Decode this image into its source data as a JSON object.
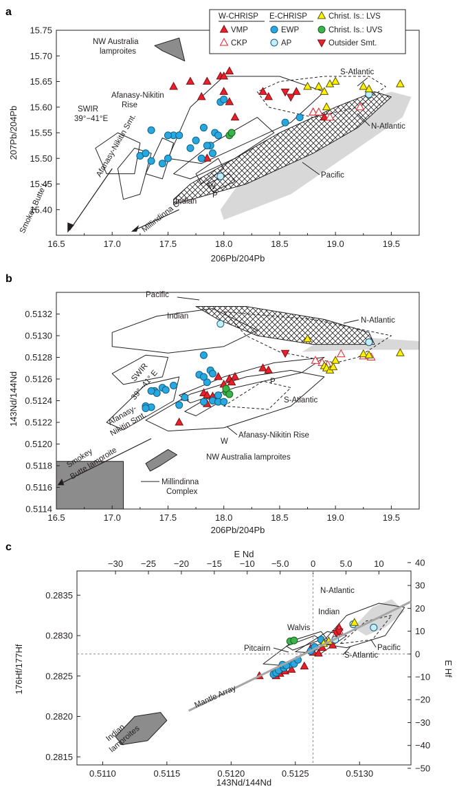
{
  "colors": {
    "red": "#e8202a",
    "blue": "#29a8e0",
    "cyan": "#c6ecf8",
    "yellow": "#fff200",
    "green": "#39b54a",
    "grey": "#8c8c8c",
    "lightgrey": "#d8d8d8"
  },
  "legend": {
    "groups": [
      "W-CHRISP",
      "E-CHRISP"
    ],
    "items": [
      {
        "label": "VMP",
        "marker": "triangle-up-filled-red"
      },
      {
        "label": "CKP",
        "marker": "triangle-up-open-red"
      },
      {
        "label": "EWP",
        "marker": "circle-filled-blue"
      },
      {
        "label": "AP",
        "marker": "circle-open-cyan"
      },
      {
        "label": "Christ. Is.: LVS",
        "marker": "triangle-up-yellow"
      },
      {
        "label": "Christ. Is.: UVS",
        "marker": "circle-green"
      },
      {
        "label": "Outsider Smt.",
        "marker": "triangle-down-red"
      }
    ]
  },
  "chart_data": [
    {
      "panel": "a",
      "type": "scatter",
      "xlabel": "206Pb/204Pb",
      "ylabel": "207Pb/204Pb",
      "xlim": [
        16.5,
        19.75
      ],
      "ylim": [
        15.35,
        15.75
      ],
      "xticks": [
        "16.5",
        "17.0",
        "17.5",
        "18.0",
        "18.5",
        "19.0",
        "19.5"
      ],
      "yticks": [
        "15.40",
        "15.45",
        "15.50",
        "15.55",
        "15.60",
        "15.65",
        "15.70",
        "15.75"
      ],
      "annotations": [
        "NW Australia lamproites",
        "Afanasy-Nikitin Rise",
        "SWIR 39°−41°E",
        "Afanasy-Nikitin Smt.",
        "Indian",
        "W",
        "P",
        "Pacific",
        "S-Atlantic",
        "N-Atlantic",
        "Smokey Butte L.",
        "Millindinna C."
      ],
      "series": [
        {
          "name": "VMP",
          "x": [
            17.55,
            17.7,
            17.8,
            17.85,
            17.97,
            18.0,
            18.0,
            18.05,
            18.05,
            18.1,
            17.85,
            18.35,
            18.4,
            18.65,
            18.8,
            18.9
          ],
          "y": [
            15.64,
            15.65,
            15.62,
            15.65,
            15.66,
            15.66,
            15.63,
            15.61,
            15.67,
            15.58,
            15.5,
            15.63,
            15.62,
            15.63,
            15.59,
            15.58
          ]
        },
        {
          "name": "CKP",
          "x": [
            18.8,
            18.85,
            18.95,
            19.22
          ],
          "y": [
            15.59,
            15.59,
            15.58,
            15.6
          ]
        },
        {
          "name": "EWP",
          "x": [
            17.25,
            17.35,
            17.45,
            17.5,
            17.55,
            17.6,
            17.3,
            17.35,
            17.5,
            17.7,
            17.75,
            17.8,
            17.82,
            17.88,
            17.9,
            17.92,
            17.95,
            17.97,
            17.85,
            18.0,
            18.55,
            18.68
          ],
          "y": [
            15.505,
            15.495,
            15.49,
            15.5,
            15.545,
            15.545,
            15.51,
            15.555,
            15.545,
            15.52,
            15.535,
            15.5,
            15.56,
            15.525,
            15.51,
            15.55,
            15.545,
            15.61,
            15.525,
            15.615,
            15.57,
            15.58
          ]
        },
        {
          "name": "AP",
          "x": [
            17.97,
            19.3
          ],
          "y": [
            15.465,
            15.625
          ]
        },
        {
          "name": "Christ. Is.: LVS",
          "x": [
            18.75,
            18.85,
            18.9,
            18.95,
            18.92,
            19.0,
            19.25,
            19.3,
            19.58
          ],
          "y": [
            15.64,
            15.64,
            15.63,
            15.645,
            15.6,
            15.65,
            15.64,
            15.635,
            15.645
          ]
        },
        {
          "name": "Christ. Is.: UVS",
          "x": [
            18.05,
            18.07
          ],
          "y": [
            15.545,
            15.55
          ]
        },
        {
          "name": "Outsider Smt.",
          "x": [
            18.55,
            18.6
          ],
          "y": [
            15.63,
            15.62
          ]
        }
      ]
    },
    {
      "panel": "b",
      "type": "scatter",
      "xlabel": "206Pb/204Pb",
      "ylabel": "143Nd/144Nd",
      "xlim": [
        16.5,
        19.75
      ],
      "ylim": [
        0.5114,
        0.5134
      ],
      "xticks": [
        "16.5",
        "17.0",
        "17.5",
        "18.0",
        "18.5",
        "19.0",
        "19.5"
      ],
      "yticks": [
        "0.5114",
        "0.5116",
        "0.5118",
        "0.5120",
        "0.5122",
        "0.5124",
        "0.5126",
        "0.5128",
        "0.5130",
        "0.5132"
      ],
      "annotations": [
        "Pacific",
        "Indian",
        "N-Atlantic",
        "SWIR 39°−41° E",
        "P",
        "S-Atlantic",
        "W",
        "Afanasy-Nikitin Smt.",
        "Afanasy-Nikitin Rise",
        "Smokey Butte lamproite",
        "NW Australia lamproites",
        "Millindinna Complex"
      ],
      "series": [
        {
          "name": "VMP",
          "x": [
            17.65,
            17.82,
            17.85,
            17.9,
            18.0,
            18.05,
            18.07,
            18.1,
            17.95,
            17.85,
            18.35,
            18.4,
            17.95,
            17.6
          ],
          "y": [
            0.51243,
            0.51247,
            0.51245,
            0.51244,
            0.51255,
            0.5126,
            0.51257,
            0.51262,
            0.51262,
            0.51237,
            0.5127,
            0.51268,
            0.51241,
            0.5122
          ]
        },
        {
          "name": "CKP",
          "x": [
            18.82,
            18.88,
            18.93,
            19.05,
            19.25,
            19.32
          ],
          "y": [
            0.51277,
            0.51275,
            0.51273,
            0.51283,
            0.51281,
            0.5128
          ]
        },
        {
          "name": "EWP",
          "x": [
            17.3,
            17.35,
            17.38,
            17.4,
            17.45,
            17.48,
            17.3,
            17.35,
            17.6,
            17.65,
            17.82,
            17.85,
            17.78,
            17.82,
            17.82,
            17.88,
            17.9,
            17.95,
            17.95,
            18.0,
            17.55,
            17.9
          ],
          "y": [
            0.51235,
            0.51234,
            0.51249,
            0.51247,
            0.51252,
            0.5125,
            0.51233,
            0.51249,
            0.51236,
            0.51243,
            0.51282,
            0.51257,
            0.51264,
            0.51262,
            0.51239,
            0.51268,
            0.5124,
            0.51239,
            0.51245,
            0.51239,
            0.51254,
            0.51265
          ]
        },
        {
          "name": "AP",
          "x": [
            17.97,
            19.3
          ],
          "y": [
            0.51311,
            0.51294
          ]
        },
        {
          "name": "Christ. Is.: LVS",
          "x": [
            18.75,
            18.9,
            18.92,
            18.95,
            18.98,
            19.0,
            19.25,
            19.3,
            19.58
          ],
          "y": [
            0.51297,
            0.51272,
            0.5127,
            0.51268,
            0.51271,
            0.51277,
            0.51283,
            0.51282,
            0.51284
          ]
        },
        {
          "name": "Christ. Is.: UVS",
          "x": [
            18.02,
            18.02,
            18.05
          ],
          "y": [
            0.51248,
            0.51251,
            0.51246
          ]
        },
        {
          "name": "Outsider Smt.",
          "x": [
            18.55
          ],
          "y": [
            0.51284
          ]
        }
      ]
    },
    {
      "panel": "c",
      "type": "scatter",
      "xlabel": "143Nd/144Nd",
      "ylabel": "176Hf/177Hf",
      "top_axis_label": "E Nd",
      "right_axis_label": "E Hf",
      "xlim": [
        0.5108,
        0.5134
      ],
      "ylim": [
        0.2814,
        0.2838
      ],
      "xticks": [
        "0.5110",
        "0.5115",
        "0.5120",
        "0.5125",
        "0.5130"
      ],
      "yticks": [
        "0.2815",
        "0.2820",
        "0.2825",
        "0.2830",
        "0.2835"
      ],
      "top_ticks": [
        "−30",
        "−25",
        "−20",
        "−15",
        "−10",
        "−5.0",
        "0",
        "5.0",
        "10"
      ],
      "right_ticks": [
        "40",
        "30",
        "20",
        "10",
        "0",
        "−10",
        "−20",
        "−30",
        "−40",
        "−50"
      ],
      "annotations": [
        "N-Atlantic",
        "Indian",
        "Walvis",
        "Pitcairn",
        "Pacific",
        "S-Atlantic",
        "Mantle Array",
        "Indian lamproites"
      ],
      "series": [
        {
          "name": "VMP",
          "x": [
            0.51222,
            0.51235,
            0.51238,
            0.51242,
            0.51247,
            0.51257,
            0.51262,
            0.51264,
            0.51268,
            0.51271,
            0.51279,
            0.51284
          ],
          "y": [
            0.2825,
            0.2825,
            0.28253,
            0.28256,
            0.28258,
            0.28262,
            0.28284,
            0.28279,
            0.28278,
            0.28285,
            0.28288,
            0.2831
          ]
        },
        {
          "name": "CKP",
          "x": [
            0.51276,
            0.5128,
            0.51282,
            0.51284
          ],
          "y": [
            0.28293,
            0.28295,
            0.28302,
            0.28306
          ]
        },
        {
          "name": "EWP",
          "x": [
            0.51233,
            0.51235,
            0.51237,
            0.51241,
            0.51245,
            0.51249,
            0.51252,
            0.51262,
            0.51265,
            0.5127,
            0.5124,
            0.51243
          ],
          "y": [
            0.28252,
            0.28254,
            0.28257,
            0.2826,
            0.28264,
            0.28265,
            0.2827,
            0.28281,
            0.28286,
            0.28295,
            0.28264,
            0.28263
          ]
        },
        {
          "name": "AP",
          "x": [
            0.51281,
            0.51295,
            0.51311
          ],
          "y": [
            0.28295,
            0.28314,
            0.2831
          ]
        },
        {
          "name": "Christ. Is.: LVS",
          "x": [
            0.51272,
            0.51276,
            0.51296
          ],
          "y": [
            0.2829,
            0.28293,
            0.28316
          ]
        },
        {
          "name": "Christ. Is.: UVS",
          "x": [
            0.51246,
            0.51249
          ],
          "y": [
            0.28293,
            0.28294
          ]
        },
        {
          "name": "Outsider Smt.",
          "x": [
            0.51282,
            0.51284
          ],
          "y": [
            0.28303,
            0.28305
          ]
        }
      ]
    }
  ]
}
